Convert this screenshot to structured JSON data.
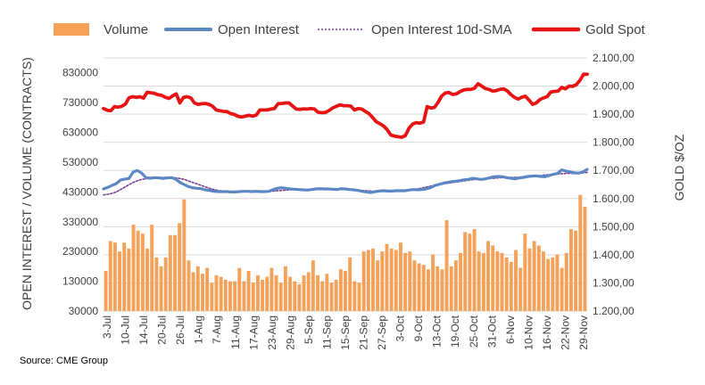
{
  "source": "Source: CME Group",
  "colors": {
    "volume": "#f4a259",
    "open_interest": "#5b87c5",
    "sma": "#7a3c8f",
    "gold": "#e81313",
    "grid": "#d9d9d9",
    "text": "#404040"
  },
  "chart_data": {
    "type": "bar",
    "legend": [
      "Volume",
      "Open Interest",
      "Open Interest 10d-SMA",
      "Gold Spot"
    ],
    "legend_position": "top",
    "grid": true,
    "ylabel_left": "OPEN INTEREST / VOLUME (CONTRACTS)",
    "ylabel_right": "GOLD $/OZ",
    "yticks_left": [
      "30000",
      "130000",
      "230000",
      "330000",
      "430000",
      "530000",
      "630000",
      "730000",
      "830000"
    ],
    "yticks_right": [
      "1.200,00",
      "1.300,00",
      "1.400,00",
      "1.500,00",
      "1.600,00",
      "1.700,00",
      "1.800,00",
      "1.900,00",
      "2.000,00",
      "2.100,00"
    ],
    "ylim_left": [
      30000,
      880000
    ],
    "ylim_right": [
      1200,
      2100
    ],
    "xtick_labels": [
      "3-Jul",
      "10-Jul",
      "14-Jul",
      "20-Jul",
      "26-Jul",
      "1-Aug",
      "7-Aug",
      "11-Aug",
      "17-Aug",
      "23-Aug",
      "29-Aug",
      "5-Sep",
      "11-Sep",
      "15-Sep",
      "21-Sep",
      "27-Sep",
      "3-Oct",
      "9-Oct",
      "13-Oct",
      "19-Oct",
      "25-Oct",
      "31-Oct",
      "6-Nov",
      "10-Nov",
      "16-Nov",
      "22-Nov",
      "29-Nov"
    ],
    "series": [
      {
        "name": "Volume",
        "type": "bar",
        "axis": "left",
        "values": [
          165000,
          265000,
          260000,
          230000,
          260000,
          240000,
          320000,
          300000,
          290000,
          240000,
          320000,
          210000,
          180000,
          210000,
          285000,
          285000,
          325000,
          405000,
          200000,
          160000,
          180000,
          155000,
          175000,
          125000,
          150000,
          145000,
          135000,
          130000,
          130000,
          175000,
          130000,
          165000,
          125000,
          150000,
          135000,
          145000,
          175000,
          150000,
          125000,
          180000,
          145000,
          130000,
          120000,
          150000,
          160000,
          200000,
          150000,
          130000,
          155000,
          125000,
          135000,
          170000,
          165000,
          210000,
          130000,
          125000,
          230000,
          235000,
          240000,
          200000,
          230000,
          255000,
          240000,
          235000,
          260000,
          225000,
          230000,
          200000,
          190000,
          185000,
          170000,
          220000,
          180000,
          170000,
          335000,
          180000,
          200000,
          225000,
          295000,
          290000,
          305000,
          230000,
          225000,
          265000,
          250000,
          230000,
          225000,
          210000,
          195000,
          235000,
          175000,
          290000,
          240000,
          265000,
          250000,
          230000,
          205000,
          210000,
          220000,
          175000,
          225000,
          305000,
          300000,
          420000,
          380000
        ]
      },
      {
        "name": "Open Interest",
        "type": "line",
        "axis": "left",
        "values": [
          440000,
          445000,
          452000,
          458000,
          470000,
          473000,
          475000,
          497000,
          502000,
          493000,
          478000,
          476000,
          478000,
          477000,
          475000,
          477000,
          478000,
          473000,
          462000,
          455000,
          448000,
          444000,
          442000,
          441000,
          437000,
          435000,
          432000,
          431000,
          431000,
          431000,
          430000,
          430000,
          431000,
          432000,
          432000,
          431000,
          432000,
          431000,
          431000,
          432000,
          438000,
          442000,
          444000,
          442000,
          440000,
          439000,
          438000,
          437000,
          436000,
          438000,
          440000,
          441000,
          440000,
          440000,
          439000,
          438000,
          441000,
          440000,
          438000,
          437000,
          435000,
          432000,
          430000,
          428000,
          431000,
          433000,
          434000,
          433000,
          433000,
          434000,
          434000,
          434000,
          436000,
          438000,
          437000,
          438000,
          440000,
          444000,
          451000,
          455000,
          459000,
          462000,
          464000,
          466000,
          468000,
          471000,
          472000,
          476000,
          474000,
          472000,
          474000,
          477000,
          481000,
          482000,
          481000,
          478000,
          476000,
          474000,
          477000,
          479000,
          482000,
          483000,
          484000,
          482000,
          481000,
          485000,
          489000,
          492000,
          504000,
          500000,
          497000,
          494000,
          493000,
          497000,
          506000
        ]
      },
      {
        "name": "Open Interest 10d-SMA",
        "type": "line",
        "axis": "left",
        "values": [
          420000,
          422000,
          425000,
          430000,
          438000,
          446000,
          454000,
          462000,
          468000,
          472000,
          474000,
          477000,
          478000,
          479000,
          479000,
          479000,
          478000,
          477000,
          475000,
          472000,
          467000,
          462000,
          457000,
          452000,
          447000,
          442000,
          438000,
          435000,
          433000,
          432000,
          431000,
          431000,
          431000,
          431000,
          431000,
          431000,
          431000,
          431000,
          431000,
          432000,
          433000,
          434000,
          435000,
          436000,
          437000,
          438000,
          438000,
          438000,
          438000,
          438000,
          438000,
          438000,
          438000,
          438000,
          438000,
          438000,
          438000,
          438000,
          437000,
          437000,
          436000,
          435000,
          434000,
          433000,
          432000,
          432000,
          432000,
          432000,
          432000,
          432000,
          433000,
          434000,
          435000,
          437000,
          440000,
          443000,
          446000,
          449000,
          452000,
          455000,
          457000,
          459000,
          461000,
          463000,
          465000,
          467000,
          469000,
          471000,
          472000,
          473000,
          474000,
          475000,
          476000,
          477000,
          478000,
          479000,
          479000,
          479000,
          479000,
          480000,
          481000,
          482000,
          483000,
          485000,
          487000,
          488000,
          489000,
          490000,
          491000,
          492000,
          492000,
          493000,
          493000,
          494000,
          495000
        ]
      },
      {
        "name": "Gold Spot",
        "type": "line",
        "axis": "right",
        "values": [
          1920,
          1914,
          1912,
          1927,
          1925,
          1928,
          1936,
          1958,
          1962,
          1960,
          1962,
          1957,
          1978,
          1976,
          1974,
          1969,
          1967,
          1960,
          1956,
          1965,
          1972,
          1940,
          1960,
          1962,
          1958,
          1940,
          1935,
          1937,
          1938,
          1935,
          1928,
          1915,
          1912,
          1910,
          1909,
          1902,
          1899,
          1892,
          1890,
          1893,
          1896,
          1893,
          1897,
          1915,
          1915,
          1915,
          1918,
          1920,
          1937,
          1938,
          1940,
          1940,
          1929,
          1918,
          1917,
          1919,
          1918,
          1920,
          1918,
          1907,
          1905,
          1906,
          1913,
          1922,
          1928,
          1933,
          1930,
          1930,
          1929,
          1915,
          1920,
          1918,
          1910,
          1902,
          1888,
          1873,
          1866,
          1858,
          1845,
          1826,
          1822,
          1820,
          1818,
          1824,
          1850,
          1865,
          1870,
          1868,
          1872,
          1927,
          1922,
          1924,
          1942,
          1965,
          1975,
          1977,
          1970,
          1972,
          1980,
          1986,
          1988,
          1988,
          1992,
          2008,
          2000,
          1991,
          1988,
          1982,
          1984,
          1988,
          1990,
          1983,
          1970,
          1960,
          1954,
          1960,
          1964,
          1950,
          1935,
          1940,
          1952,
          1958,
          1962,
          1979,
          1981,
          1982,
          1995,
          1990,
          2000,
          1999,
          2005,
          2020,
          2042,
          2042
        ]
      }
    ]
  }
}
